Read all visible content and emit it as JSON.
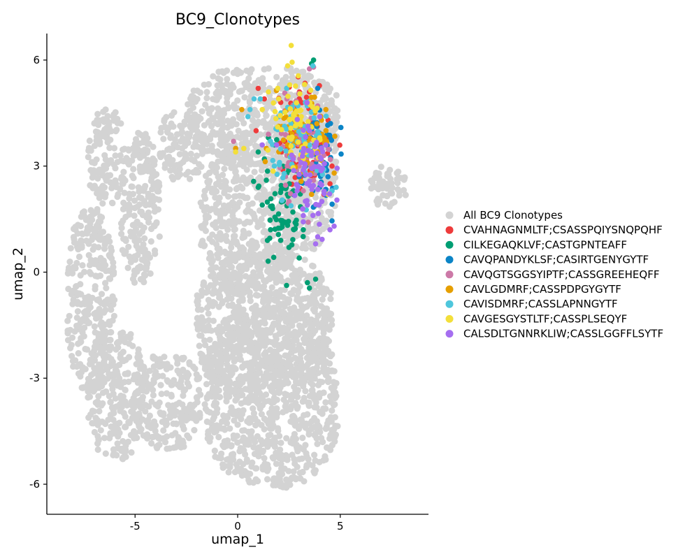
{
  "chart_data": {
    "type": "scatter",
    "title": "BC9_Clonotypes",
    "xlabel": "umap_1",
    "ylabel": "umap_2",
    "xlim": [
      -9.3,
      9.3
    ],
    "ylim": [
      -6.85,
      6.75
    ],
    "xticks": [
      -5,
      0,
      5
    ],
    "xtick_labels": [
      "-5",
      "0",
      "5"
    ],
    "yticks": [
      -6,
      -3,
      0,
      3,
      6
    ],
    "ytick_labels": [
      "-6",
      "-3",
      "0",
      "3",
      "6"
    ],
    "grid": false,
    "legend_position": "right",
    "background_series": {
      "name": "All BC9 Clonotypes",
      "color": "#d3d3d3",
      "regions": [
        {
          "x": [
            -8.3,
            -6.0
          ],
          "y": [
            -3.3,
            1.8
          ]
        },
        {
          "x": [
            -7.3,
            -4.6
          ],
          "y": [
            -5.3,
            -1.6
          ]
        },
        {
          "x": [
            -5.0,
            -1.8
          ],
          "y": [
            -5.0,
            -2.3
          ]
        },
        {
          "x": [
            -1.6,
            4.9
          ],
          "y": [
            -6.1,
            -1.0
          ]
        },
        {
          "x": [
            -2.0,
            4.6
          ],
          "y": [
            -3.5,
            0.6
          ]
        },
        {
          "x": [
            -1.8,
            2.9
          ],
          "y": [
            -0.5,
            3.6
          ]
        },
        {
          "x": [
            -2.5,
            4.9
          ],
          "y": [
            3.0,
            5.8
          ]
        },
        {
          "x": [
            2.0,
            4.8
          ],
          "y": [
            0.6,
            4.8
          ]
        },
        {
          "x": [
            -7.3,
            -5.5
          ],
          "y": [
            1.9,
            4.6
          ]
        },
        {
          "x": [
            -5.7,
            -3.8
          ],
          "y": [
            -0.3,
            4.0
          ]
        },
        {
          "x": [
            -3.8,
            -1.6
          ],
          "y": [
            2.6,
            4.6
          ]
        },
        {
          "x": [
            6.5,
            8.2
          ],
          "y": [
            1.8,
            3.0
          ]
        }
      ]
    },
    "series": [
      {
        "name": "CVAHNAGNMLTF;CSASSPQIYSNQPQHF",
        "color": "#ee3b3b",
        "center": [
          3.3,
          3.8
        ],
        "spread": [
          0.65,
          0.8
        ],
        "points": [
          [
            1.0,
            5.2
          ],
          [
            1.3,
            4.9
          ],
          [
            0.9,
            4.0
          ],
          [
            2.1,
            4.8
          ],
          [
            2.3,
            3.7
          ],
          [
            2.2,
            2.9
          ],
          [
            3.0,
            4.9
          ],
          [
            3.6,
            4.2
          ],
          [
            4.4,
            4.3
          ],
          [
            4.6,
            3.0
          ],
          [
            4.5,
            2.5
          ],
          [
            4.2,
            2.2
          ],
          [
            3.2,
            3.4
          ],
          [
            3.8,
            3.1
          ],
          [
            4.0,
            3.6
          ],
          [
            2.8,
            4.3
          ],
          [
            3.5,
            5.1
          ],
          [
            4.1,
            2.8
          ],
          [
            3.3,
            3.0
          ],
          [
            2.6,
            3.9
          ]
        ]
      },
      {
        "name": "CILKEGAQKLVF;CASTGPNTEAFF",
        "color": "#009e73",
        "center": [
          2.1,
          1.9
        ],
        "spread": [
          0.45,
          0.75
        ],
        "points": [
          [
            3.7,
            6.0
          ],
          [
            3.6,
            5.9
          ],
          [
            1.5,
            3.8
          ],
          [
            1.0,
            3.4
          ],
          [
            1.3,
            3.2
          ],
          [
            2.4,
            2.8
          ],
          [
            3.0,
            0.4
          ],
          [
            3.4,
            -0.3
          ],
          [
            3.8,
            -0.2
          ],
          [
            3.5,
            -0.45
          ],
          [
            1.6,
            1.2
          ],
          [
            2.1,
            0.9
          ],
          [
            2.5,
            0.7
          ],
          [
            1.2,
            1.9
          ],
          [
            1.0,
            2.4
          ],
          [
            2.8,
            1.4
          ],
          [
            3.2,
            1.2
          ],
          [
            1.4,
            2.6
          ],
          [
            2.7,
            2.2
          ],
          [
            1.8,
            3.6
          ]
        ]
      },
      {
        "name": "CAVQPANDYKLSF;CASIRTGENYGYTF",
        "color": "#0b84c6",
        "center": [
          3.8,
          3.4
        ],
        "spread": [
          0.5,
          0.8
        ],
        "points": [
          [
            3.9,
            5.2
          ],
          [
            4.6,
            1.45
          ],
          [
            3.9,
            3.2
          ],
          [
            3.4,
            3.8
          ],
          [
            4.2,
            3.1
          ],
          [
            3.0,
            2.7
          ],
          [
            4.4,
            2.7
          ],
          [
            3.7,
            4.2
          ],
          [
            4.0,
            2.4
          ],
          [
            3.3,
            3.4
          ]
        ]
      },
      {
        "name": "CAVQGTSGGSYIPTF;CASSGREEHEQFF",
        "color": "#cc79a7",
        "center": [
          3.1,
          3.6
        ],
        "spread": [
          0.55,
          0.7
        ],
        "points": [
          [
            3.7,
            5.8
          ],
          [
            3.5,
            5.75
          ],
          [
            -0.2,
            3.7
          ],
          [
            1.5,
            3.9
          ],
          [
            2.4,
            4.9
          ],
          [
            3.2,
            2.3
          ],
          [
            4.2,
            3.3
          ],
          [
            3.0,
            3.0
          ],
          [
            2.5,
            2.0
          ],
          [
            3.7,
            2.6
          ],
          [
            2.8,
            4.5
          ],
          [
            3.9,
            4.7
          ],
          [
            2.4,
            3.3
          ],
          [
            3.3,
            4.0
          ]
        ]
      },
      {
        "name": "CAVLGDMRF;CASSPDPGYGYTF",
        "color": "#e69f00",
        "center": [
          3.2,
          3.7
        ],
        "spread": [
          0.65,
          0.65
        ],
        "points": [
          [
            0.2,
            4.6
          ],
          [
            1.4,
            3.5
          ],
          [
            -0.1,
            3.5
          ],
          [
            4.3,
            4.6
          ],
          [
            3.6,
            2.2
          ],
          [
            2.9,
            4.1
          ],
          [
            4.1,
            3.9
          ],
          [
            3.4,
            3.1
          ],
          [
            2.7,
            3.6
          ],
          [
            3.9,
            3.4
          ]
        ]
      },
      {
        "name": "CAVISDMRF;CASSLAPNNGYTF",
        "color": "#4ec6dc",
        "center": [
          3.1,
          3.8
        ],
        "spread": [
          0.7,
          0.75
        ],
        "points": [
          [
            0.6,
            4.6
          ],
          [
            0.5,
            4.4
          ],
          [
            0.8,
            4.9
          ],
          [
            1.1,
            4.9
          ],
          [
            2.0,
            4.4
          ],
          [
            4.6,
            2.3
          ],
          [
            4.8,
            2.4
          ],
          [
            1.6,
            3.7
          ],
          [
            3.8,
            3.7
          ],
          [
            2.6,
            4.2
          ],
          [
            3.3,
            4.8
          ],
          [
            4.2,
            2.9
          ],
          [
            3.6,
            3.3
          ]
        ]
      },
      {
        "name": "CAVGESGYSTLTF;CASSPLSEQYF",
        "color": "#f3df3a",
        "center": [
          2.9,
          4.1
        ],
        "spread": [
          0.7,
          0.7
        ],
        "points": [
          [
            1.5,
            5.1
          ],
          [
            1.2,
            4.6
          ],
          [
            -0.1,
            3.4
          ],
          [
            0.3,
            3.5
          ],
          [
            2.0,
            4.9
          ],
          [
            4.4,
            2.2
          ],
          [
            4.0,
            3.8
          ],
          [
            3.1,
            4.4
          ],
          [
            2.5,
            3.8
          ],
          [
            3.6,
            4.1
          ]
        ]
      },
      {
        "name": "CALSDLTGNNRKLIW;CASSLGGFFLSYTF",
        "color": "#a56ef0",
        "center": [
          3.6,
          2.6
        ],
        "spread": [
          0.55,
          0.85
        ],
        "points": [
          [
            1.2,
            3.6
          ],
          [
            1.9,
            3.6
          ],
          [
            3.9,
            1.0
          ],
          [
            4.7,
            1.3
          ],
          [
            3.8,
            0.8
          ],
          [
            3.2,
            1.6
          ],
          [
            4.5,
            1.2
          ],
          [
            4.0,
            4.4
          ],
          [
            2.9,
            2.3
          ],
          [
            3.4,
            1.9
          ],
          [
            4.1,
            2.0
          ],
          [
            3.6,
            3.3
          ],
          [
            2.7,
            3.2
          ],
          [
            4.3,
            3.6
          ],
          [
            3.5,
            4.0
          ]
        ]
      }
    ]
  }
}
